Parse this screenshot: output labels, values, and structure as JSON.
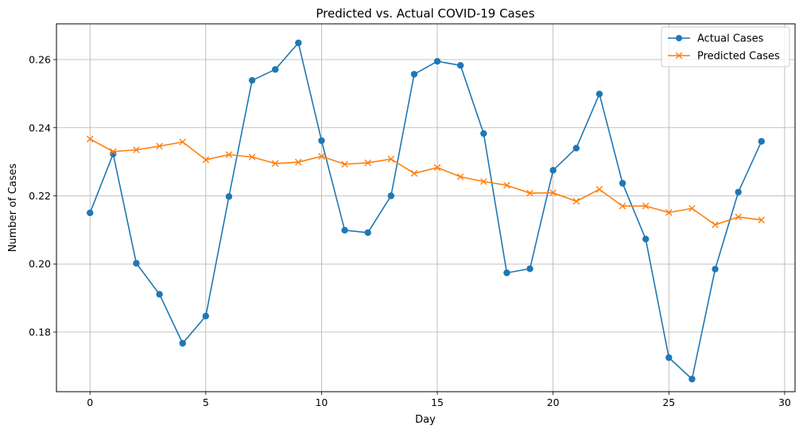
{
  "chart_data": {
    "type": "line",
    "title": "Predicted vs. Actual COVID-19 Cases",
    "xlabel": "Day",
    "ylabel": "Number of Cases",
    "xlim": [
      -1.45,
      30.45
    ],
    "ylim": [
      0.1625,
      0.2705
    ],
    "xticks": [
      0,
      5,
      10,
      15,
      20,
      25,
      30
    ],
    "yticks": [
      0.18,
      0.2,
      0.22,
      0.24,
      0.26
    ],
    "xtick_labels": [
      "0",
      "5",
      "10",
      "15",
      "20",
      "25",
      "30"
    ],
    "ytick_labels": [
      "0.18",
      "0.20",
      "0.22",
      "0.24",
      "0.26"
    ],
    "grid": true,
    "legend_position": "top-right",
    "x": [
      0,
      1,
      2,
      3,
      4,
      5,
      6,
      7,
      8,
      9,
      10,
      11,
      12,
      13,
      14,
      15,
      16,
      17,
      18,
      19,
      20,
      21,
      22,
      23,
      24,
      25,
      26,
      27,
      28,
      29
    ],
    "series": [
      {
        "name": "Actual Cases",
        "marker": "circle",
        "color": "#1f77b4",
        "values": [
          0.215,
          0.2323,
          0.2002,
          0.1911,
          0.1767,
          0.1847,
          0.2198,
          0.2539,
          0.2571,
          0.2649,
          0.2362,
          0.2099,
          0.2092,
          0.22,
          0.2557,
          0.2595,
          0.2583,
          0.2383,
          0.1974,
          0.1986,
          0.2275,
          0.234,
          0.2499,
          0.2237,
          0.2073,
          0.1725,
          0.1662,
          0.1985,
          0.2211,
          0.236
        ]
      },
      {
        "name": "Predicted Cases",
        "marker": "x",
        "color": "#ff7f0e",
        "values": [
          0.2367,
          0.233,
          0.2335,
          0.2346,
          0.2358,
          0.2306,
          0.2321,
          0.2314,
          0.2295,
          0.2299,
          0.2316,
          0.2293,
          0.2297,
          0.2308,
          0.2266,
          0.2283,
          0.2256,
          0.2242,
          0.2231,
          0.2208,
          0.2209,
          0.2184,
          0.2219,
          0.217,
          0.217,
          0.2151,
          0.2163,
          0.2115,
          0.2138,
          0.2129
        ]
      }
    ]
  }
}
